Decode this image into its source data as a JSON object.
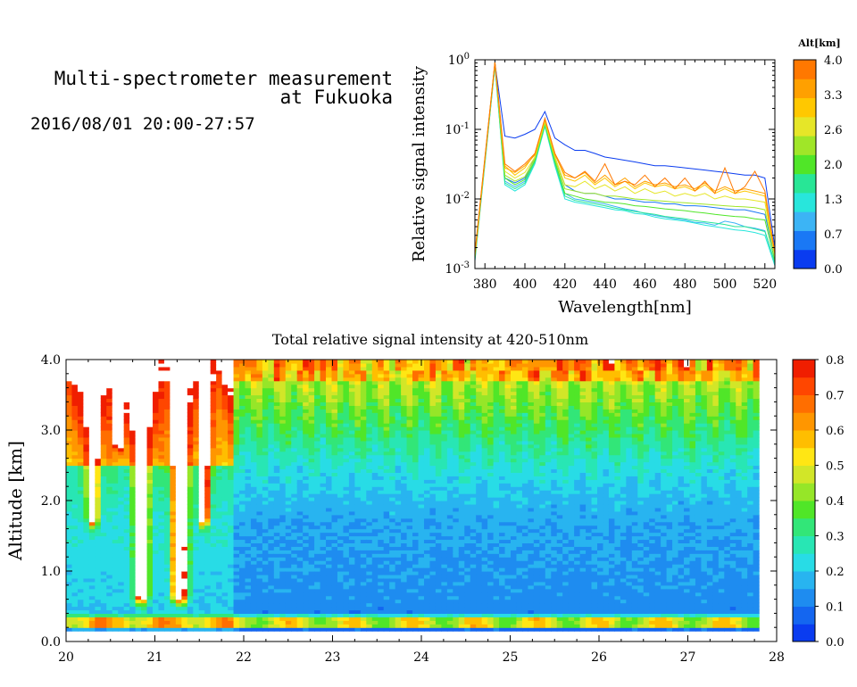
{
  "header": {
    "title_line1": "Multi-spectrometer measurement",
    "title_line2": "at Fukuoka",
    "datetime": "2016/08/01 20:00-27:57"
  },
  "chart_data": [
    {
      "type": "line",
      "xlabel": "Wavelength[nm]",
      "ylabel": "Relative signal intensity",
      "xlim": [
        375,
        525
      ],
      "ylim": [
        0.001,
        1
      ],
      "yscale": "log",
      "xticks": [
        "380",
        "400",
        "420",
        "440",
        "460",
        "480",
        "500",
        "520"
      ],
      "yticks": [
        {
          "base": "10",
          "exp": "-3"
        },
        {
          "base": "10",
          "exp": "-2"
        },
        {
          "base": "10",
          "exp": "-1"
        },
        {
          "base": "10",
          "exp": "0"
        }
      ],
      "color_axis": {
        "title": "Alt[km]",
        "ticks": [
          "0.0",
          "0.7",
          "1.3",
          "2.0",
          "2.6",
          "3.3",
          "4.0"
        ],
        "colors": [
          "#0a3cf0",
          "#1a78f5",
          "#3cb4f5",
          "#28e6dc",
          "#28e696",
          "#50e628",
          "#a0e628",
          "#e6e628",
          "#ffc800",
          "#ffa000",
          "#ff7800"
        ]
      },
      "x": [
        375,
        385,
        390,
        395,
        400,
        405,
        410,
        415,
        420,
        425,
        430,
        435,
        440,
        445,
        450,
        455,
        460,
        465,
        470,
        475,
        480,
        485,
        490,
        495,
        500,
        505,
        510,
        515,
        520,
        525
      ],
      "series": [
        {
          "color": "#0a3cf0",
          "values": [
            0.0015,
            0.9,
            0.08,
            0.075,
            0.085,
            0.1,
            0.18,
            0.075,
            0.06,
            0.05,
            0.05,
            0.045,
            0.04,
            0.038,
            0.036,
            0.034,
            0.032,
            0.03,
            0.03,
            0.029,
            0.028,
            0.027,
            0.026,
            0.025,
            0.024,
            0.023,
            0.022,
            0.022,
            0.02,
            0.002
          ]
        },
        {
          "color": "#1a78f5",
          "values": [
            0.0014,
            0.85,
            0.02,
            0.017,
            0.02,
            0.04,
            0.13,
            0.04,
            0.016,
            0.013,
            0.012,
            0.012,
            0.011,
            0.01,
            0.01,
            0.0095,
            0.009,
            0.009,
            0.0085,
            0.0085,
            0.008,
            0.008,
            0.0078,
            0.0075,
            0.0072,
            0.007,
            0.007,
            0.0065,
            0.006,
            0.0015
          ]
        },
        {
          "color": "#3cb4f5",
          "values": [
            0.0013,
            0.8,
            0.018,
            0.015,
            0.018,
            0.035,
            0.12,
            0.035,
            0.012,
            0.01,
            0.0095,
            0.009,
            0.0085,
            0.0078,
            0.0072,
            0.0068,
            0.0062,
            0.0058,
            0.0055,
            0.0052,
            0.005,
            0.0046,
            0.0045,
            0.0042,
            0.0048,
            0.0045,
            0.004,
            0.0038,
            0.0035,
            0.0012
          ]
        },
        {
          "color": "#28e6dc",
          "values": [
            0.0013,
            0.82,
            0.016,
            0.013,
            0.016,
            0.032,
            0.11,
            0.03,
            0.01,
            0.009,
            0.0085,
            0.008,
            0.0075,
            0.007,
            0.0068,
            0.0062,
            0.006,
            0.0055,
            0.0052,
            0.005,
            0.0048,
            0.0045,
            0.0042,
            0.004,
            0.0038,
            0.0036,
            0.0035,
            0.0033,
            0.003,
            0.0011
          ]
        },
        {
          "color": "#28e696",
          "values": [
            0.0014,
            0.85,
            0.017,
            0.014,
            0.017,
            0.034,
            0.115,
            0.032,
            0.011,
            0.0095,
            0.009,
            0.0085,
            0.008,
            0.0074,
            0.007,
            0.0066,
            0.0063,
            0.006,
            0.0056,
            0.0054,
            0.0052,
            0.0049,
            0.0047,
            0.0045,
            0.0043,
            0.004,
            0.004,
            0.0037,
            0.0034,
            0.0012
          ]
        },
        {
          "color": "#50e628",
          "values": [
            0.0014,
            0.87,
            0.02,
            0.016,
            0.019,
            0.036,
            0.12,
            0.035,
            0.012,
            0.011,
            0.01,
            0.0095,
            0.009,
            0.0088,
            0.0085,
            0.008,
            0.0078,
            0.0075,
            0.0072,
            0.007,
            0.0068,
            0.0065,
            0.0063,
            0.006,
            0.0058,
            0.0056,
            0.0055,
            0.0052,
            0.005,
            0.0013
          ]
        },
        {
          "color": "#a0e628",
          "values": [
            0.0015,
            0.88,
            0.022,
            0.018,
            0.021,
            0.038,
            0.125,
            0.038,
            0.014,
            0.013,
            0.012,
            0.012,
            0.011,
            0.011,
            0.0105,
            0.01,
            0.0098,
            0.0095,
            0.0093,
            0.009,
            0.0088,
            0.0086,
            0.0084,
            0.0082,
            0.008,
            0.0078,
            0.0077,
            0.0075,
            0.007,
            0.0015
          ]
        },
        {
          "color": "#e6e628",
          "values": [
            0.0015,
            0.9,
            0.025,
            0.02,
            0.024,
            0.04,
            0.13,
            0.04,
            0.016,
            0.015,
            0.018,
            0.014,
            0.016,
            0.013,
            0.015,
            0.012,
            0.014,
            0.012,
            0.013,
            0.011,
            0.012,
            0.011,
            0.012,
            0.01,
            0.011,
            0.01,
            0.01,
            0.0095,
            0.009,
            0.0015
          ]
        },
        {
          "color": "#ffc800",
          "values": [
            0.0016,
            0.9,
            0.03,
            0.022,
            0.028,
            0.045,
            0.14,
            0.045,
            0.02,
            0.018,
            0.022,
            0.016,
            0.02,
            0.015,
            0.018,
            0.014,
            0.017,
            0.015,
            0.016,
            0.014,
            0.015,
            0.013,
            0.016,
            0.012,
            0.014,
            0.012,
            0.013,
            0.012,
            0.011,
            0.0016
          ]
        },
        {
          "color": "#ffa000",
          "values": [
            0.0016,
            0.92,
            0.028,
            0.024,
            0.03,
            0.043,
            0.14,
            0.043,
            0.022,
            0.02,
            0.024,
            0.017,
            0.022,
            0.016,
            0.02,
            0.015,
            0.018,
            0.016,
            0.017,
            0.015,
            0.016,
            0.014,
            0.017,
            0.013,
            0.015,
            0.013,
            0.014,
            0.013,
            0.012,
            0.0016
          ]
        },
        {
          "color": "#ff7800",
          "values": [
            0.0017,
            0.93,
            0.032,
            0.025,
            0.032,
            0.045,
            0.145,
            0.045,
            0.024,
            0.02,
            0.025,
            0.018,
            0.032,
            0.016,
            0.018,
            0.016,
            0.022,
            0.015,
            0.02,
            0.014,
            0.02,
            0.013,
            0.018,
            0.012,
            0.028,
            0.012,
            0.015,
            0.025,
            0.013,
            0.0017
          ]
        }
      ]
    },
    {
      "type": "heatmap",
      "title": "Total relative signal intensity at 420-510nm",
      "ylabel": "Altitude [km]",
      "xlim": [
        20,
        28
      ],
      "ylim": [
        0,
        4
      ],
      "xticks": [
        "20",
        "21",
        "22",
        "23",
        "24",
        "25",
        "26",
        "27",
        "28"
      ],
      "yticks": [
        "0.0",
        "1.0",
        "2.0",
        "3.0",
        "4.0"
      ],
      "data_extent": {
        "x": [
          20,
          27.8
        ],
        "y": [
          0.15,
          4.0
        ]
      },
      "color_axis": {
        "ticks": [
          "0.0",
          "0.1",
          "0.2",
          "0.3",
          "0.4",
          "0.5",
          "0.6",
          "0.7",
          "0.8"
        ],
        "colors": [
          "#0a3cf0",
          "#1466f0",
          "#1e8cf0",
          "#28b4f0",
          "#28dce6",
          "#28e6b4",
          "#32e678",
          "#50e628",
          "#96e628",
          "#d2e628",
          "#ffe614",
          "#ffbe00",
          "#ff9600",
          "#ff6e00",
          "#ff4600",
          "#f01e00"
        ],
        "over_color": "#ffffff"
      }
    }
  ]
}
